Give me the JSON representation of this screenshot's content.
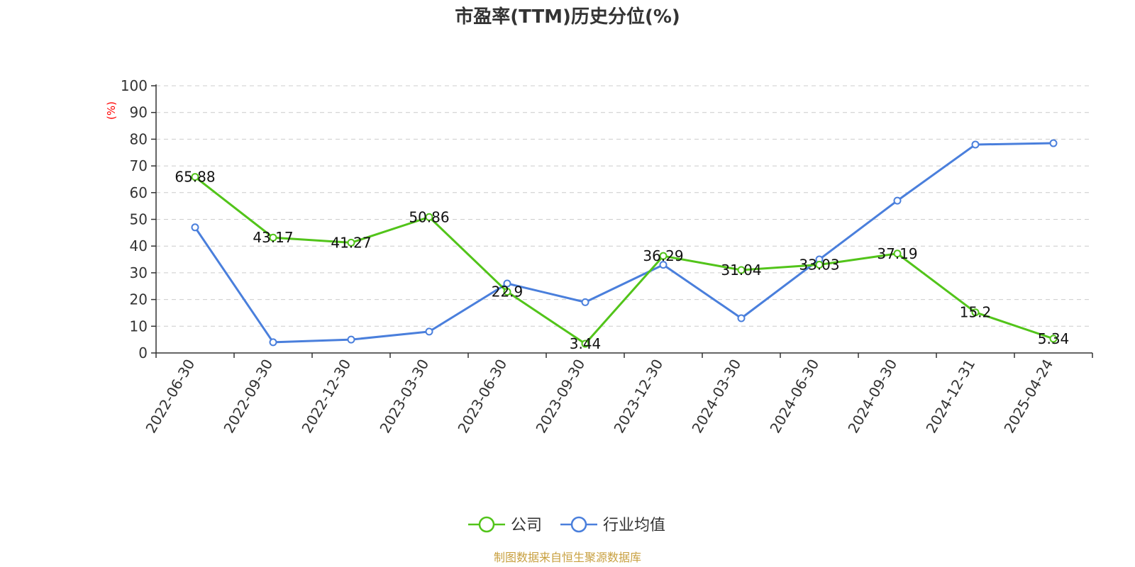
{
  "chart_data": {
    "type": "line",
    "title": "市盈率(TTM)历史分位(%)",
    "y_unit": "(%)",
    "ylim": [
      0,
      100
    ],
    "y_ticks": [
      "0",
      "10",
      "20",
      "30",
      "40",
      "50",
      "60",
      "70",
      "80",
      "90",
      "100"
    ],
    "categories": [
      "2022-06-30",
      "2022-09-30",
      "2022-12-30",
      "2023-03-30",
      "2023-06-30",
      "2023-09-30",
      "2023-12-30",
      "2024-03-30",
      "2024-06-30",
      "2024-09-30",
      "2024-12-31",
      "2025-04-24"
    ],
    "series": [
      {
        "name": "公司",
        "color": "#52c41a",
        "values": [
          65.88,
          43.17,
          41.27,
          50.86,
          22.9,
          3.44,
          36.29,
          31.04,
          33.03,
          37.19,
          15.2,
          5.34
        ],
        "labels": [
          "65.88",
          "43.17",
          "41.27",
          "50.86",
          "22.9",
          "3.44",
          "36.29",
          "31.04",
          "33.03",
          "37.19",
          "15.2",
          "5.34"
        ]
      },
      {
        "name": "行业均值",
        "color": "#4a7fdc",
        "values": [
          47,
          4,
          5,
          8,
          26,
          19,
          33,
          13,
          35,
          57,
          78,
          78.5
        ]
      }
    ],
    "grid": true,
    "grid_style": "dashed",
    "legend_position": "bottom-center",
    "source": "制图数据来自恒生聚源数据库"
  }
}
